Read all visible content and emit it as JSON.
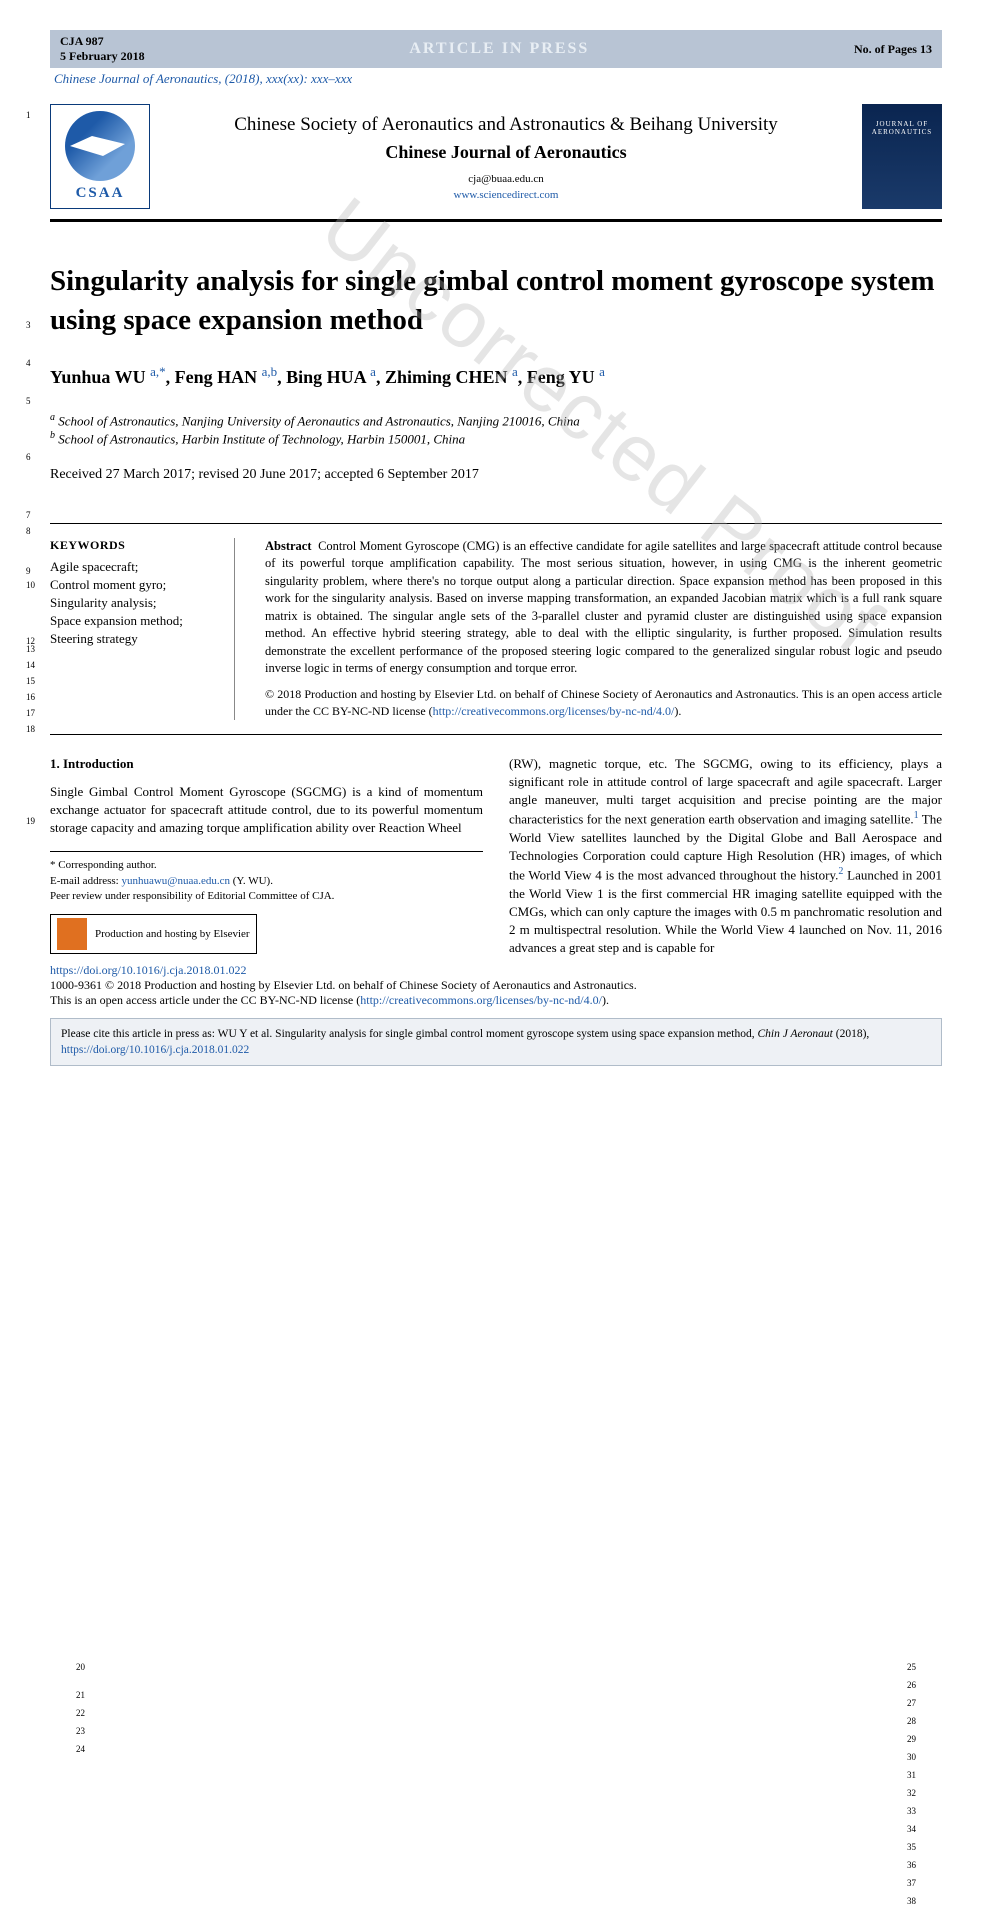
{
  "topbar": {
    "code": "CJA 987",
    "date": "5 February 2018",
    "press": "ARTICLE IN PRESS",
    "pages": "No. of Pages 13"
  },
  "journal_ref": "Chinese Journal of Aeronautics, (2018), xxx(xx): xxx–xxx",
  "masthead": {
    "logo_text": "CSAA",
    "society": "Chinese Society of Aeronautics and Astronautics & Beihang University",
    "journal": "Chinese Journal of Aeronautics",
    "email": "cja@buaa.edu.cn",
    "url": "www.sciencedirect.com",
    "cover_title": "JOURNAL OF AERONAUTICS"
  },
  "title": "Singularity analysis for single gimbal control moment gyroscope system using space expansion method",
  "authors_html": "Yunhua WU <sup>a,*</sup>, Feng HAN <sup>a,b</sup>, Bing HUA <sup>a</sup>, Zhiming CHEN <sup>a</sup>, Feng YU <sup>a</sup>",
  "affiliations": [
    {
      "sup": "a",
      "text": "School of Astronautics, Nanjing University of Aeronautics and Astronautics, Nanjing 210016, China"
    },
    {
      "sup": "b",
      "text": "School of Astronautics, Harbin Institute of Technology, Harbin 150001, China"
    }
  ],
  "dates": "Received 27 March 2017; revised 20 June 2017; accepted 6 September 2017",
  "keywords": {
    "heading": "KEYWORDS",
    "items": [
      "Agile spacecraft;",
      "Control moment gyro;",
      "Singularity analysis;",
      "Space expansion method;",
      "Steering strategy"
    ]
  },
  "abstract": {
    "label": "Abstract",
    "text": "Control Moment Gyroscope (CMG) is an effective candidate for agile satellites and large spacecraft attitude control because of its powerful torque amplification capability. The most serious situation, however, in using CMG is the inherent geometric singularity problem, where there's no torque output along a particular direction. Space expansion method has been proposed in this work for the singularity analysis. Based on inverse mapping transformation, an expanded Jacobian matrix which is a full rank square matrix is obtained. The singular angle sets of the 3-parallel cluster and pyramid cluster are distinguished using space expansion method. An effective hybrid steering strategy, able to deal with the elliptic singularity, is further proposed. Simulation results demonstrate the excellent performance of the proposed steering logic compared to the generalized singular robust logic and pseudo inverse logic in terms of energy consumption and torque error.",
    "copyright": "© 2018 Production and hosting by Elsevier Ltd. on behalf of Chinese Society of Aeronautics and Astronautics. This is an open access article under the CC BY-NC-ND license (",
    "cc_url": "http://creativecommons.org/licenses/by-nc-nd/4.0/",
    "close": ")."
  },
  "watermark": "Uncorrected Proof",
  "intro": {
    "heading": "1. Introduction",
    "col1": "Single Gimbal Control Moment Gyroscope (SGCMG) is a kind of momentum exchange actuator for spacecraft attitude control, due to its powerful momentum storage capacity and amazing torque amplification ability over Reaction Wheel",
    "col2": "(RW), magnetic torque, etc. The SGCMG, owing to its efficiency, plays a significant role in attitude control of large spacecraft and agile spacecraft. Larger angle maneuver, multi target acquisition and precise pointing are the major characteristics for the next generation earth observation and imaging satellite.",
    "col2_ref1": "1",
    "col2b": " The World View satellites launched by the Digital Globe and Ball Aerospace and Technologies Corporation could capture High Resolution (HR) images, of which the World View 4 is the most advanced throughout the history.",
    "col2_ref2": "2",
    "col2c": " Launched in 2001 the World View 1 is the first commercial HR imaging satellite equipped with the CMGs, which can only capture the images with 0.5 m panchromatic resolution and 2 m multispectral resolution. While the World View 4 launched on Nov. 11, 2016 advances a great step and is capable for"
  },
  "footnotes": {
    "corresponding": "* Corresponding author.",
    "email_label": "E-mail address:",
    "email": "yunhuawu@nuaa.edu.cn",
    "email_author": "(Y. WU).",
    "peer": "Peer review under responsibility of Editorial Committee of CJA.",
    "hosting": "Production and hosting by Elsevier"
  },
  "doi": {
    "url": "https://doi.org/10.1016/j.cja.2018.01.022",
    "issn": "1000-9361 © 2018 Production and hosting by Elsevier Ltd. on behalf of Chinese Society of Aeronautics and Astronautics.",
    "license": "This is an open access article under the CC BY-NC-ND license (",
    "license_url": "http://creativecommons.org/licenses/by-nc-nd/4.0/",
    "close": ")."
  },
  "citebox": {
    "text": "Please cite this article in press as: WU Y et al. Singularity analysis for single gimbal control moment gyroscope system using space expansion method, ",
    "journal": "Chin J Aeronaut",
    "year": "(2018), ",
    "url": "https://doi.org/10.1016/j.cja.2018.01.022"
  },
  "line_numbers_left": {
    "l1": "1",
    "l3": "3",
    "l4": "4",
    "l5": "5",
    "l6": "6",
    "l7": "7",
    "l8": "8",
    "l9": "9",
    "l10": "10",
    "l12": "12",
    "l13": "13",
    "l14": "14",
    "l15": "15",
    "l16": "16",
    "l17": "17",
    "l18": "18",
    "l19": "19",
    "l20": "20",
    "l21": "21",
    "l22": "22",
    "l23": "23",
    "l24": "24"
  },
  "line_numbers_right": {
    "r25": "25",
    "r26": "26",
    "r27": "27",
    "r28": "28",
    "r29": "29",
    "r30": "30",
    "r31": "31",
    "r32": "32",
    "r33": "33",
    "r34": "34",
    "r35": "35",
    "r36": "36",
    "r37": "37",
    "r38": "38"
  },
  "colors": {
    "topbar_bg": "#b8c4d4",
    "link": "#1e5aa8",
    "watermark": "rgba(180,180,180,0.35)",
    "citebox_bg": "#eef1f5"
  }
}
